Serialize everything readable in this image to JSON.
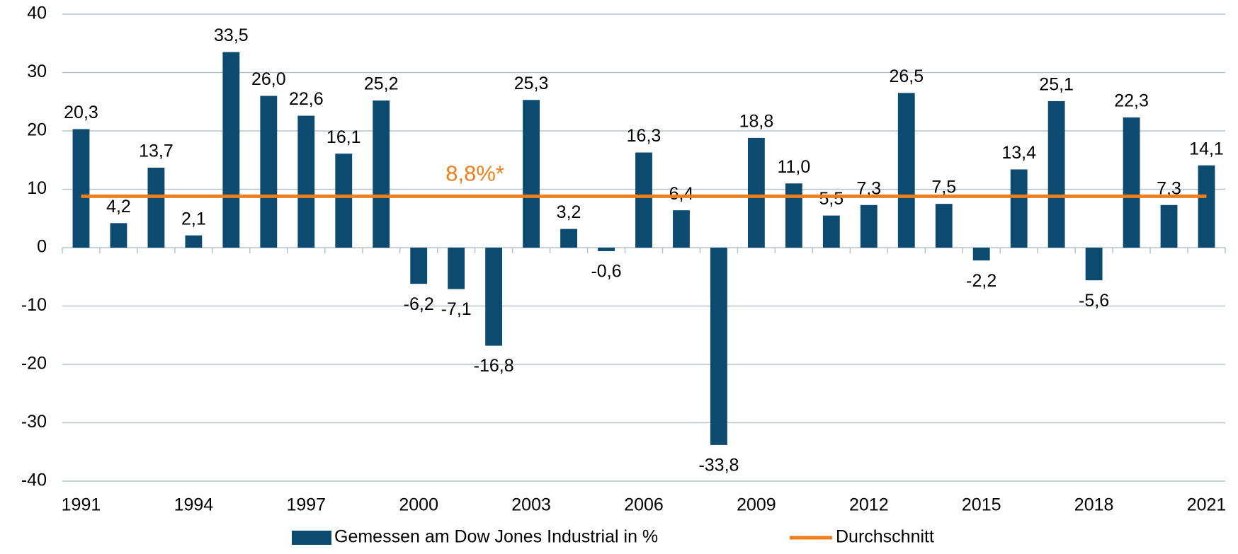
{
  "chart_data": {
    "type": "bar",
    "categories": [
      "1991",
      null,
      null,
      "1994",
      null,
      null,
      "1997",
      null,
      null,
      "2000",
      null,
      null,
      "2003",
      null,
      null,
      "2006",
      null,
      null,
      "2009",
      null,
      null,
      "2012",
      null,
      null,
      "2015",
      null,
      null,
      "2018",
      null,
      null,
      "2021"
    ],
    "series": [
      {
        "name": "Gemessen am Dow Jones Industrial in %",
        "color": "#0d4a70",
        "values": [
          20.3,
          4.2,
          13.7,
          2.1,
          33.5,
          26.0,
          22.6,
          16.1,
          25.2,
          -6.2,
          -7.1,
          -16.8,
          25.3,
          3.2,
          -0.6,
          16.3,
          6.4,
          -33.8,
          18.8,
          11.0,
          5.5,
          7.3,
          26.5,
          7.5,
          -2.2,
          13.4,
          25.1,
          -5.6,
          22.3,
          7.3,
          14.1
        ],
        "value_labels": [
          "20,3",
          "4,2",
          "13,7",
          "2,1",
          "33,5",
          "26,0",
          "22,6",
          "16,1",
          "25,2",
          "-6,2",
          "-7,1",
          "-16,8",
          "25,3",
          "3,2",
          "-0,6",
          "16,3",
          "6,4",
          "-33,8",
          "18,8",
          "11,0",
          "5,5",
          "7,3",
          "26,5",
          "7,5",
          "-2,2",
          "13,4",
          "25,1",
          "-5,6",
          "22,3",
          "7,3",
          "14,1"
        ]
      }
    ],
    "average": {
      "name": "Durchschnitt",
      "value": 8.8,
      "label": "8,8%*",
      "color": "#f07f1b"
    },
    "ylim": [
      -40,
      40
    ],
    "yticks": [
      -40,
      -30,
      -20,
      -10,
      0,
      10,
      20,
      30,
      40
    ],
    "grid": true
  }
}
